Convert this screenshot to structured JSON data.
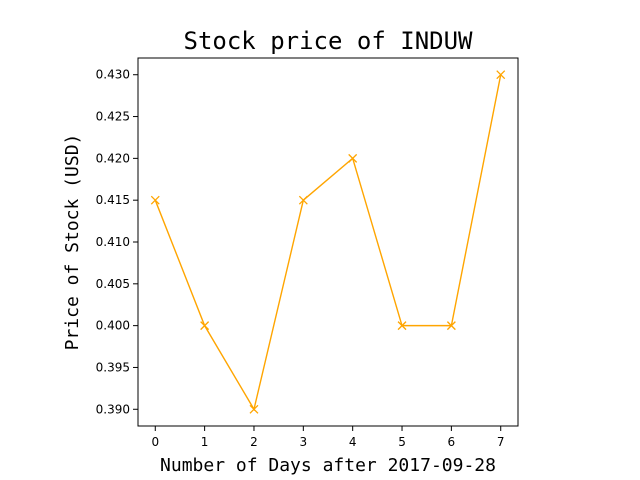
{
  "chart_data": {
    "type": "line",
    "title": "Stock price of INDUW",
    "xlabel": "Number of Days after 2017-09-28",
    "ylabel": "Price of Stock (USD)",
    "x": [
      0,
      1,
      2,
      3,
      4,
      5,
      6,
      7
    ],
    "series": [
      {
        "values": [
          0.415,
          0.4,
          0.39,
          0.415,
          0.42,
          0.4,
          0.4,
          0.43
        ]
      }
    ],
    "xticks": [
      "0",
      "1",
      "2",
      "3",
      "4",
      "5",
      "6",
      "7"
    ],
    "yticks": [
      "0.390",
      "0.395",
      "0.400",
      "0.405",
      "0.410",
      "0.415",
      "0.420",
      "0.425",
      "0.430"
    ],
    "xlim": [
      -0.35,
      7.35
    ],
    "ylim": [
      0.388,
      0.432
    ],
    "marker": "x",
    "grid": false,
    "colors": {
      "line": "#FFA500",
      "axes": "#000000",
      "background": "#FFFFFF"
    }
  }
}
